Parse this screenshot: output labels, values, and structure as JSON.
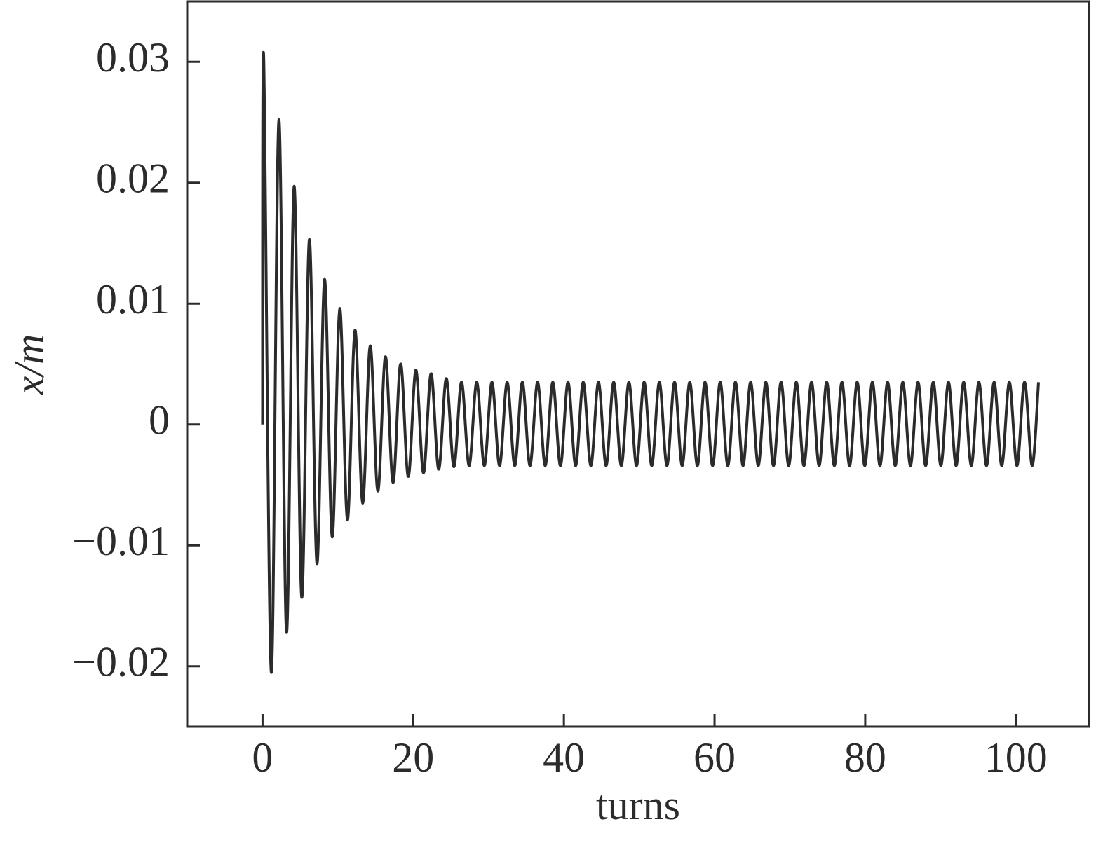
{
  "chart_data": {
    "type": "line",
    "xlabel": "turns",
    "ylabel": "x/m",
    "xlim": [
      -10,
      109.7
    ],
    "ylim": [
      -0.025,
      0.035
    ],
    "xticks": [
      0,
      20,
      40,
      60,
      80,
      100
    ],
    "yticks": [
      {
        "value": -0.02,
        "label": "−0.02"
      },
      {
        "value": -0.01,
        "label": "−0.01"
      },
      0,
      0.01,
      0.02,
      0.03
    ],
    "grid": false,
    "series": [
      {
        "color": "#2b2b2b",
        "x": [
          0,
          0.15,
          1.16,
          2.17,
          3.18,
          4.19,
          5.2,
          6.21,
          7.22,
          8.23,
          9.24,
          10.25,
          11.26,
          12.27,
          13.28,
          14.29,
          15.3,
          16.31,
          17.32,
          18.33,
          19.34,
          20.35,
          21.36,
          22.37,
          23.38,
          24.39,
          25.4,
          26.41,
          27.42,
          28.43,
          29.44,
          30.45,
          31.46,
          32.47,
          33.48,
          34.49,
          35.5,
          36.51,
          37.52,
          38.53,
          39.54,
          40.55,
          41.56,
          42.57,
          43.58,
          44.59,
          45.6,
          46.61,
          47.62,
          48.63,
          49.64,
          50.65,
          51.66,
          52.67,
          53.68,
          54.69,
          55.7,
          56.71,
          57.72,
          58.73,
          59.74,
          60.75,
          61.76,
          62.77,
          63.78,
          64.79,
          65.8,
          66.81,
          67.82,
          68.83,
          69.84,
          70.85,
          71.86,
          72.87,
          73.88,
          74.89,
          75.9,
          76.91,
          77.92,
          78.93,
          79.94,
          80.95,
          81.96,
          82.97,
          83.98,
          84.99,
          86,
          87.01,
          88.02,
          89.03,
          90.04,
          91.05,
          92.06,
          93.07,
          94.08,
          95.09,
          96.1,
          97.11,
          98.12,
          99.13,
          100.14,
          101.15,
          102.16,
          103
        ],
        "values": [
          0,
          0.0305,
          -0.0205,
          0.0252,
          -0.0172,
          0.0197,
          -0.0143,
          0.0153,
          -0.0115,
          0.012,
          -0.0093,
          0.0096,
          -0.0079,
          0.0078,
          -0.0065,
          0.0065,
          -0.0055,
          0.0056,
          -0.0048,
          0.005,
          -0.0043,
          0.0045,
          -0.004,
          0.0042,
          -0.0037,
          0.0038,
          -0.0035,
          0.0035,
          -0.0034,
          0.0035,
          -0.0034,
          0.0035,
          -0.0034,
          0.0035,
          -0.0034,
          0.0035,
          -0.0034,
          0.0035,
          -0.0034,
          0.0035,
          -0.0034,
          0.0035,
          -0.0034,
          0.0035,
          -0.0034,
          0.0035,
          -0.0034,
          0.0035,
          -0.0034,
          0.0035,
          -0.0034,
          0.0035,
          -0.0034,
          0.0035,
          -0.0034,
          0.0035,
          -0.0034,
          0.0035,
          -0.0034,
          0.0035,
          -0.0034,
          0.0035,
          -0.0034,
          0.0035,
          -0.0034,
          0.0035,
          -0.0034,
          0.0035,
          -0.0034,
          0.0035,
          -0.0034,
          0.0035,
          -0.0034,
          0.0035,
          -0.0034,
          0.0035,
          -0.0034,
          0.0035,
          -0.0034,
          0.0035,
          -0.0034,
          0.0035,
          -0.0034,
          0.0035,
          -0.0034,
          0.0035,
          -0.0034,
          0.0035,
          -0.0034,
          0.0035,
          -0.0034,
          0.0035,
          -0.0034,
          0.0035,
          -0.0034,
          0.0035,
          -0.0034,
          0.0035,
          -0.0034,
          0.0035,
          -0.0034,
          0.0035,
          -0.0034,
          0.0035
        ]
      }
    ]
  }
}
